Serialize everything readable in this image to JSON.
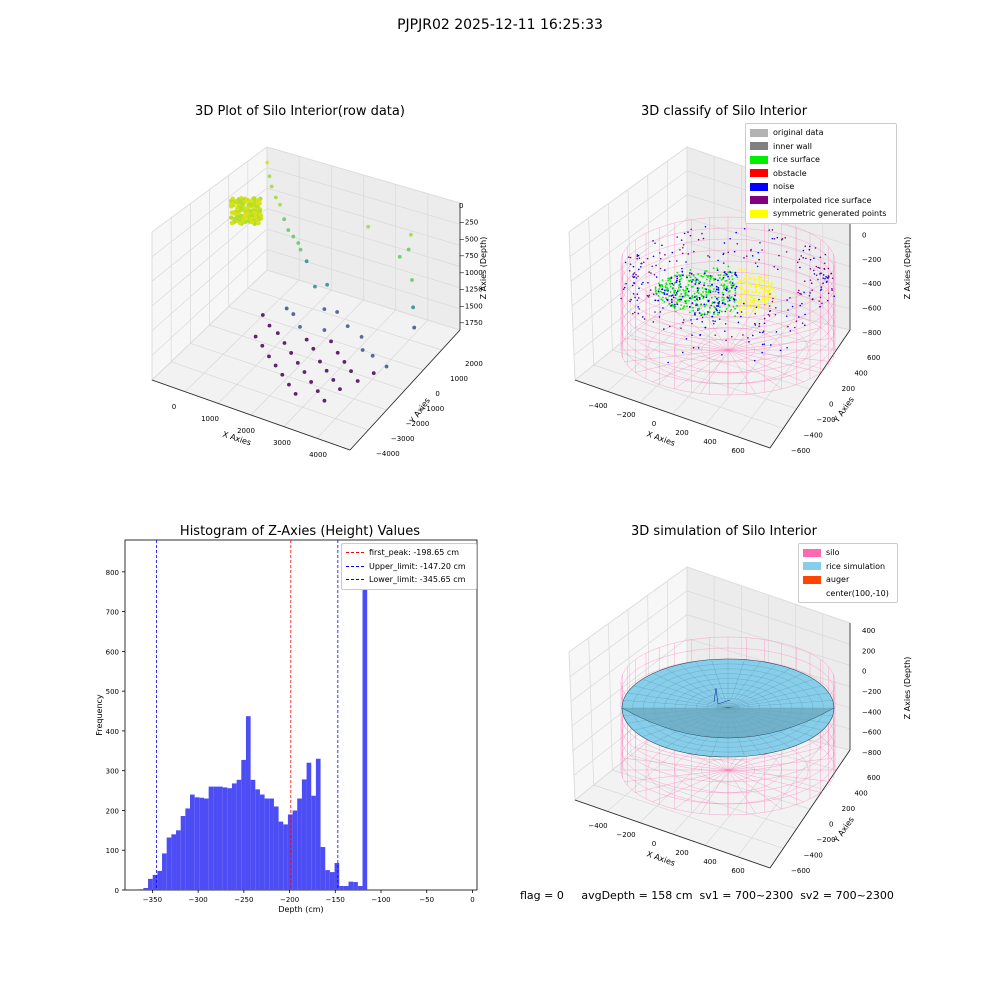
{
  "figure_title": "PJPJR02 2025-12-11 16:25:33",
  "status_text": "flag = 0     avgDepth = 158 cm  sv1 = 700~2300  sv2 = 700~2300",
  "chart_data": [
    {
      "type": "scatter",
      "title": "3D Plot of Silo Interior(row data)",
      "xlabel": "X Axies",
      "ylabel": "Y Axies",
      "zlabel": "Z Axies (Depth)",
      "xticks": [
        "0",
        "1000",
        "2000",
        "3000",
        "4000"
      ],
      "yticks": [
        "2000",
        "1000",
        "0",
        "−1000",
        "−2000",
        "−3000",
        "−4000"
      ],
      "zticks": [
        "0",
        "−250",
        "−500",
        "−750",
        "−1000",
        "−1250",
        "−1500",
        "−1750"
      ],
      "xlim": [
        -600,
        4500
      ],
      "ylim": [
        -4000,
        2500
      ],
      "zlim": [
        -2000,
        100
      ],
      "colormap": "viridis",
      "cluster": {
        "x_range": [
          -400,
          200
        ],
        "y_range": [
          1500,
          2300
        ],
        "z_range": [
          -60,
          0
        ],
        "color": "#d8e219"
      },
      "points": [
        [
          -200,
          2000,
          -300
        ],
        [
          -100,
          1900,
          -450
        ],
        [
          0,
          1800,
          -550
        ],
        [
          150,
          1700,
          -650
        ],
        [
          300,
          1600,
          -700
        ],
        [
          450,
          1500,
          -850
        ],
        [
          600,
          1400,
          -950
        ],
        [
          750,
          1350,
          -1000
        ],
        [
          900,
          1300,
          -1050
        ],
        [
          1000,
          1200,
          -1100
        ],
        [
          1200,
          1100,
          -1200
        ],
        [
          1500,
          900,
          -1450
        ],
        [
          1900,
          700,
          -1300
        ],
        [
          2400,
          2000,
          -700
        ],
        [
          3300,
          1800,
          -900
        ],
        [
          3400,
          2100,
          -850
        ],
        [
          3500,
          2000,
          -600
        ],
        [
          3700,
          1600,
          -1100
        ],
        [
          3900,
          1200,
          -1350
        ],
        [
          4100,
          800,
          -1500
        ],
        [
          2200,
          600,
          -1600
        ],
        [
          2600,
          300,
          -1650
        ],
        [
          3000,
          200,
          -1700
        ],
        [
          3200,
          -200,
          -1750
        ],
        [
          3500,
          -300,
          -1750
        ],
        [
          1200,
          300,
          -1750
        ],
        [
          1500,
          0,
          -1800
        ],
        [
          1800,
          -300,
          -1850
        ],
        [
          2100,
          -600,
          -1850
        ],
        [
          2400,
          -900,
          -1900
        ],
        [
          2700,
          -1200,
          -1900
        ],
        [
          3000,
          -1500,
          -1900
        ],
        [
          3300,
          -1800,
          -1900
        ],
        [
          700,
          -800,
          -1900
        ],
        [
          1000,
          -1100,
          -1900
        ],
        [
          1300,
          -1400,
          -1920
        ],
        [
          1600,
          -1700,
          -1920
        ],
        [
          1900,
          -2000,
          -1920
        ],
        [
          2200,
          -2300,
          -1930
        ],
        [
          2500,
          -2600,
          -1930
        ],
        [
          900,
          600,
          -1800
        ],
        [
          1700,
          1000,
          -1750
        ],
        [
          2000,
          300,
          -1820
        ],
        [
          2300,
          0,
          -1850
        ],
        [
          2600,
          -300,
          -1880
        ],
        [
          2900,
          -600,
          -1880
        ],
        [
          3200,
          -900,
          -1880
        ],
        [
          3500,
          -1200,
          -1890
        ],
        [
          3700,
          -700,
          -1860
        ],
        [
          3900,
          -400,
          -1800
        ],
        [
          1100,
          -400,
          -1870
        ],
        [
          1400,
          -700,
          -1880
        ],
        [
          1700,
          -1000,
          -1890
        ],
        [
          2000,
          -1300,
          -1900
        ],
        [
          2300,
          -1600,
          -1900
        ],
        [
          2600,
          -1900,
          -1910
        ],
        [
          2900,
          -2200,
          -1910
        ],
        [
          3200,
          -2500,
          -1915
        ],
        [
          500,
          100,
          -1850
        ],
        [
          800,
          -200,
          -1870
        ]
      ]
    },
    {
      "type": "scatter",
      "title": "3D classify of Silo Interior",
      "xlabel": "X Axies",
      "ylabel": "Y Axies",
      "zlabel": "Z Axies (Depth)",
      "xticks": [
        "−400",
        "−200",
        "0",
        "200",
        "400",
        "600"
      ],
      "yticks": [
        "600",
        "400",
        "200",
        "0",
        "−200",
        "−400",
        "−600"
      ],
      "zticks": [
        "200",
        "0",
        "−200",
        "−400",
        "−600",
        "−800"
      ],
      "legend": [
        {
          "label": "original data",
          "color": "#b3b3b3"
        },
        {
          "label": "inner wall",
          "color": "#808080"
        },
        {
          "label": "rice surface",
          "color": "#00ee00"
        },
        {
          "label": "obstacle",
          "color": "#ff0000"
        },
        {
          "label": "noise",
          "color": "#0000ff"
        },
        {
          "label": "interpolated rice surface",
          "color": "#800080"
        },
        {
          "label": "symmetric generated points",
          "color": "#ffff00"
        }
      ],
      "silo_color": "#ff69b4",
      "radius": 650,
      "zlim": [
        -900,
        300
      ],
      "surface_depth": -250
    },
    {
      "type": "bar",
      "title": "Histogram of Z-Axies (Height) Values",
      "xlabel": "Depth (cm)",
      "ylabel": "Frequency",
      "xlim": [
        -380,
        5
      ],
      "ylim": [
        0,
        880
      ],
      "xticks": [
        -350,
        -300,
        -250,
        -200,
        -150,
        -100,
        -50,
        0
      ],
      "yticks": [
        0,
        100,
        200,
        300,
        400,
        500,
        600,
        700,
        800
      ],
      "bin_edges_start": -365,
      "bin_width": 5.1,
      "bar_color": "#4d4df5",
      "values": [
        2,
        5,
        28,
        38,
        48,
        92,
        132,
        140,
        150,
        186,
        205,
        240,
        233,
        232,
        230,
        260,
        260,
        260,
        258,
        256,
        268,
        277,
        327,
        437,
        277,
        253,
        240,
        230,
        230,
        210,
        172,
        165,
        190,
        200,
        230,
        278,
        320,
        237,
        330,
        108,
        50,
        45,
        68,
        10,
        10,
        21,
        20,
        10,
        830
      ],
      "vlines": [
        {
          "x": -198.65,
          "color": "#ff0000",
          "label": "first_peak: -198.65 cm"
        },
        {
          "x": -147.2,
          "color": "#0000ff",
          "label": "Upper_limit: -147.20 cm"
        },
        {
          "x": -345.65,
          "color": "#0000ff",
          "label": "Lower_limit: -345.65 cm"
        }
      ],
      "legend_position": "top-right"
    },
    {
      "type": "surface",
      "title": "3D simulation of Silo Interior",
      "xlabel": "X Axies",
      "ylabel": "Y Axies",
      "zlabel": "Z Axies (Depth)",
      "xticks": [
        "−400",
        "−200",
        "0",
        "200",
        "400",
        "600"
      ],
      "yticks": [
        "600",
        "400",
        "200",
        "0",
        "−200",
        "−400",
        "−600"
      ],
      "zticks": [
        "400",
        "200",
        "0",
        "−200",
        "−400",
        "−600",
        "−800"
      ],
      "legend": [
        {
          "label": "silo",
          "color": "#ff69b4"
        },
        {
          "label": "rice simulation",
          "color": "#87ceeb"
        },
        {
          "label": "auger",
          "color": "#ff4500"
        },
        {
          "label": "center(100,-10)",
          "color": ""
        }
      ],
      "radius": 650,
      "zlim": [
        -900,
        450
      ],
      "surface_depth": -150
    }
  ]
}
